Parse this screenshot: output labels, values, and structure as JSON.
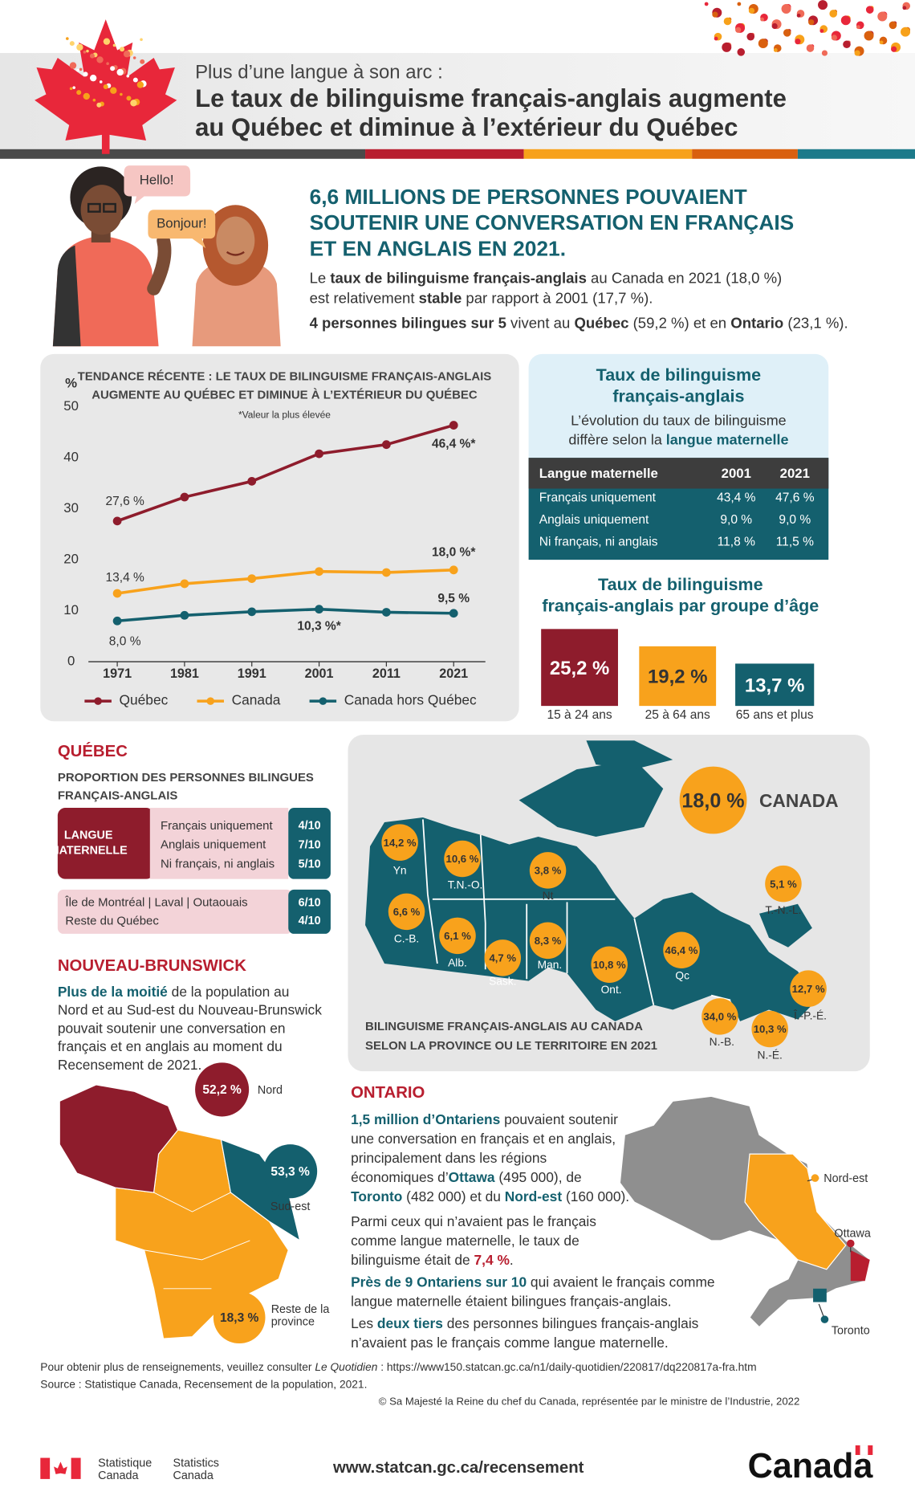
{
  "header": {
    "kicker": "Plus d’une langue à son arc :",
    "title": [
      "Le taux de bilinguisme français-anglais augmente",
      "au Québec et diminue à l’extérieur du Québec"
    ]
  },
  "bubbles": [
    "Hello!",
    "Bonjour!"
  ],
  "intro": {
    "headline": [
      "6,6 MILLIONS DE PERSONNES POUVAIENT",
      "SOUTENIR UNE CONVERSATION EN FRANÇAIS",
      "ET EN ANGLAIS EN 2021."
    ],
    "lines": [
      [
        "Le ",
        {
          "b": "taux de bilinguisme français-anglais"
        },
        " au Canada en 2021 (18,0 %)"
      ],
      [
        "est relativement ",
        {
          "b": "stable"
        },
        " par rapport à 2001 (17,7 %)."
      ],
      [
        {
          "b": "4 personnes bilingues sur 5"
        },
        " vivent au ",
        {
          "b": "Québec"
        },
        " (59,2 %) et en ",
        {
          "b": "Ontario"
        },
        " (23,1 %)."
      ]
    ]
  },
  "chart_data": {
    "type": "line",
    "title": [
      "TENDANCE RÉCENTE : LE TAUX DE BILINGUISME FRANÇAIS-ANGLAIS",
      "AUGMENTE AU QUÉBEC ET DIMINUE À L’EXTÉRIEUR DU QUÉBEC"
    ],
    "note": "*Valeur la plus élevée",
    "y_label": "%",
    "categories": [
      "1971",
      "1981",
      "1991",
      "2001",
      "2011",
      "2021"
    ],
    "series": [
      {
        "name": "Québec",
        "color": "#8e1c2c",
        "values": [
          27.6,
          32.3,
          35.4,
          40.8,
          42.6,
          46.4
        ],
        "value_labels": [
          "27,6 %",
          null,
          null,
          null,
          null,
          "46,4 %*"
        ]
      },
      {
        "name": "Canada",
        "color": "#f8a21c",
        "values": [
          13.4,
          15.3,
          16.3,
          17.7,
          17.5,
          18.0
        ],
        "value_labels": [
          "13,4 %",
          null,
          null,
          null,
          null,
          "18,0 %*"
        ]
      },
      {
        "name": "Canada hors Québec",
        "color": "#14606e",
        "values": [
          8.0,
          9.1,
          9.8,
          10.3,
          9.7,
          9.5
        ],
        "value_labels": [
          "8,0 %",
          null,
          null,
          "10,3 %*",
          null,
          "9,5 %"
        ]
      }
    ],
    "ylim": [
      0,
      50
    ],
    "yticks": [
      0,
      10,
      20,
      30,
      40,
      50
    ],
    "grid": false
  },
  "mother_tongue": {
    "title": [
      "Taux de bilinguisme",
      "français-anglais"
    ],
    "subtitle": [
      [
        "L’évolution du taux de bilinguisme"
      ],
      [
        "diffère selon la ",
        {
          "t": "langue maternelle"
        }
      ]
    ],
    "header": [
      "Langue maternelle",
      "2001",
      "2021"
    ],
    "rows": [
      [
        "Français uniquement",
        "43,4 %",
        "47,6 %"
      ],
      [
        "Anglais uniquement",
        "9,0 %",
        "9,0 %"
      ],
      [
        "Ni français, ni anglais",
        "11,8 %",
        "11,5 %"
      ]
    ]
  },
  "age_groups": {
    "title": [
      "Taux de bilinguisme",
      "français-anglais par groupe d’âge"
    ],
    "groups": [
      {
        "value": "25,2 %",
        "label": "15 à 24 ans"
      },
      {
        "value": "19,2 %",
        "label": "25 à 64 ans"
      },
      {
        "value": "13,7 %",
        "label": "65 ans et plus"
      }
    ]
  },
  "quebec": {
    "title": "QUÉBEC",
    "subtitle": [
      "PROPORTION DES PERSONNES BILINGUES",
      "FRANÇAIS-ANGLAIS"
    ],
    "group_label": [
      "LANGUE",
      "MATERNELLE"
    ],
    "rows": [
      [
        "Français uniquement",
        "4/10"
      ],
      [
        "Anglais uniquement",
        "7/10"
      ],
      [
        "Ni français, ni anglais",
        "5/10"
      ]
    ],
    "regions": [
      [
        "Île de Montréal | Laval | Outaouais",
        "6/10"
      ],
      [
        "Reste du Québec",
        "4/10"
      ]
    ]
  },
  "new_brunswick": {
    "title": "NOUVEAU-BRUNSWICK",
    "lines": [
      [
        {
          "t": "Plus de la moitié"
        },
        " de la population au"
      ],
      [
        "Nord et au Sud-est du Nouveau-Brunswick"
      ],
      [
        "pouvait soutenir une conversation en"
      ],
      [
        "français et en anglais au moment du"
      ],
      [
        "Recensement de 2021."
      ]
    ],
    "regions": [
      {
        "value": "52,2 %",
        "label": [
          "Nord"
        ]
      },
      {
        "value": "53,3 %",
        "label": [
          "Sud-est"
        ]
      },
      {
        "value": "18,3 %",
        "label": [
          "Reste de la",
          "province"
        ]
      }
    ]
  },
  "canada_map": {
    "total": {
      "value": "18,0 %",
      "label": "CANADA"
    },
    "caption": [
      "BILINGUISME FRANÇAIS-ANGLAIS AU CANADA",
      "SELON LA PROVINCE OU LE TERRITOIRE EN 2021"
    ],
    "regions": [
      {
        "value": "14,2 %",
        "label": "Yn"
      },
      {
        "value": "10,6 %",
        "label": "T.N.-O."
      },
      {
        "value": "3,8 %",
        "label": "Nt"
      },
      {
        "value": "6,6 %",
        "label": "C.-B."
      },
      {
        "value": "6,1 %",
        "label": "Alb."
      },
      {
        "value": "4,7 %",
        "label": "Sask."
      },
      {
        "value": "8,3 %",
        "label": "Man."
      },
      {
        "value": "10,8 %",
        "label": "Ont."
      },
      {
        "value": "46,4 %",
        "label": "Qc"
      },
      {
        "value": "5,1 %",
        "label": "T.-N.-L."
      },
      {
        "value": "12,7 %",
        "label": "Î.-P.-É."
      },
      {
        "value": "34,0 %",
        "label": "N.-B."
      },
      {
        "value": "10,3 %",
        "label": "N.-É."
      }
    ]
  },
  "ontario": {
    "title": "ONTARIO",
    "lines": [
      [
        {
          "t": "1,5 million d’Ontariens"
        },
        " pouvaient soutenir"
      ],
      [
        "une conversation en français et en anglais,"
      ],
      [
        "principalement dans les régions"
      ],
      [
        "économiques d’",
        {
          "t": "Ottawa"
        },
        " (495 000), de"
      ],
      [
        {
          "t": "Toronto"
        },
        " (482 000) et du ",
        {
          "t": "Nord-est"
        },
        " (160 000)."
      ],
      [
        "Parmi ceux qui n’avaient pas le français"
      ],
      [
        "comme langue maternelle, le taux de"
      ],
      [
        "bilinguisme était de ",
        {
          "r": "7,4 %"
        },
        "."
      ],
      [
        {
          "t": "Près de 9 Ontariens sur 10"
        },
        " qui avaient le français comme"
      ],
      [
        "langue maternelle étaient bilingues français-anglais."
      ],
      [
        "Les ",
        {
          "t": "deux tiers"
        },
        " des personnes bilingues français-anglais"
      ],
      [
        "n’avaient pas le français comme langue maternelle."
      ]
    ],
    "labels": [
      "Nord-est",
      "Ottawa",
      "Toronto"
    ]
  },
  "footer": {
    "lines": [
      [
        "Pour obtenir plus de renseignements, veuillez consulter ",
        {
          "i": "Le Quotidien"
        },
        " : https://www150.statcan.gc.ca/n1/daily-quotidien/220817/dq220817a-fra.htm"
      ],
      [
        "Source : Statistique Canada, Recensement de la population, 2021."
      ]
    ],
    "copyright": "© Sa Majesté la Reine du chef du Canada, représentée par le ministre de l’Industrie, 2022",
    "agency": [
      "Statistique",
      "Canada",
      "Statistics",
      "Canada"
    ],
    "url": "www.statcan.gc.ca/recensement",
    "wordmark": "Canada"
  }
}
